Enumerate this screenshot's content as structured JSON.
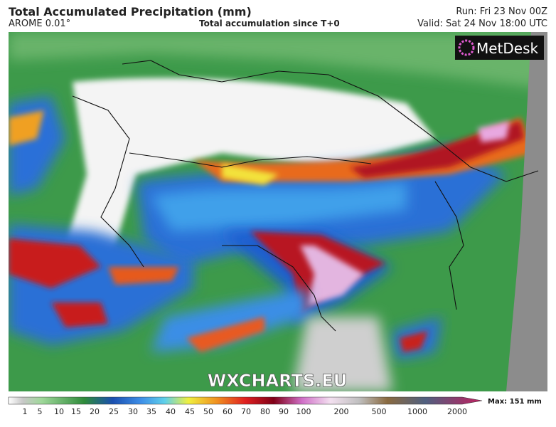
{
  "header": {
    "title": "Total Accumulated Precipitation (mm)",
    "model": "AROME 0.01°",
    "subtitle": "Total accumulation since T+0",
    "run": "Run: Fri 23 Nov 00Z",
    "valid": "Valid: Sat 24 Nov 18:00 UTC"
  },
  "map": {
    "logo": "MetDesk",
    "watermark": "WXCHARTS.EU"
  },
  "legend": {
    "ticks": [
      "1",
      "5",
      "10",
      "15",
      "20",
      "25",
      "30",
      "35",
      "40",
      "45",
      "50",
      "60",
      "70",
      "80",
      "90",
      "100",
      "200",
      "500",
      "1000",
      "2000"
    ],
    "max": "Max: 151 mm"
  }
}
